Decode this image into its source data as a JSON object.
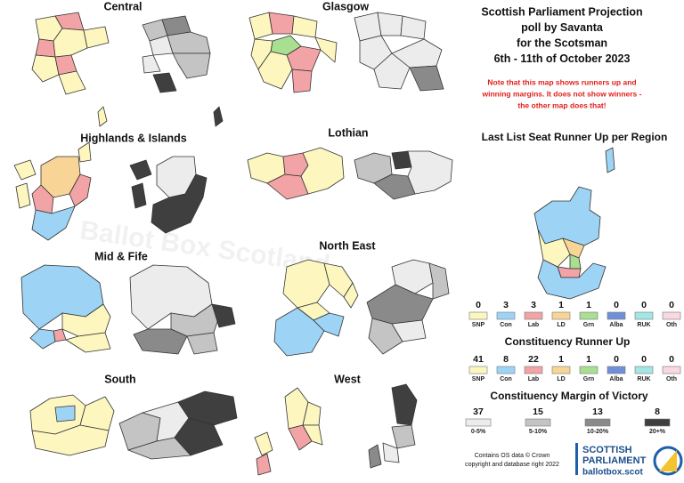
{
  "header": {
    "title": [
      "Scottish Parliament Projection",
      "poll by Savanta",
      "for the Scotsman",
      "6th - 11th of October 2023"
    ],
    "note": [
      "Note that this map shows runners up and",
      "winning margins. It does not show winners -",
      "the other map does that!"
    ]
  },
  "watermark": "Ballot Box Scotland",
  "regions": [
    "Central",
    "Glasgow",
    "Highlands & Islands",
    "Lothian",
    "Mid & Fife",
    "North East",
    "South",
    "West"
  ],
  "list_heading": "Last List Seat Runner Up per Region",
  "constituency_heading": "Constituency Runner Up",
  "margin_heading": "Constituency Margin of Victory",
  "parties": [
    {
      "name": "SNP",
      "color": "#fdf6bf",
      "list_runner_up": 0,
      "constituency_runner_up": 41
    },
    {
      "name": "Con",
      "color": "#9dd4f6",
      "list_runner_up": 3,
      "constituency_runner_up": 8
    },
    {
      "name": "Lab",
      "color": "#f2a3a6",
      "list_runner_up": 3,
      "constituency_runner_up": 22
    },
    {
      "name": "LD",
      "color": "#f8d596",
      "list_runner_up": 1,
      "constituency_runner_up": 1
    },
    {
      "name": "Grn",
      "color": "#a8df91",
      "list_runner_up": 1,
      "constituency_runner_up": 1
    },
    {
      "name": "Alba",
      "color": "#6f8fd8",
      "list_runner_up": 0,
      "constituency_runner_up": 0
    },
    {
      "name": "RUK",
      "color": "#a3e6e6",
      "list_runner_up": 0,
      "constituency_runner_up": 0
    },
    {
      "name": "Oth",
      "color": "#f9d8e0",
      "list_runner_up": 0,
      "constituency_runner_up": 0
    }
  ],
  "margins": [
    {
      "label": "0-5%",
      "count": 37,
      "color": "#ececec"
    },
    {
      "label": "5-10%",
      "count": 15,
      "color": "#c4c4c4"
    },
    {
      "label": "10-20%",
      "count": 13,
      "color": "#8a8a8a"
    },
    {
      "label": "20+%",
      "count": 8,
      "color": "#3f3f3f"
    }
  ],
  "footer": [
    "Contains OS data © Crown",
    "copyright and database right 2022"
  ],
  "logo": [
    "SCOTTISH",
    "PARLIAMENT",
    "ballotbox.scot"
  ]
}
